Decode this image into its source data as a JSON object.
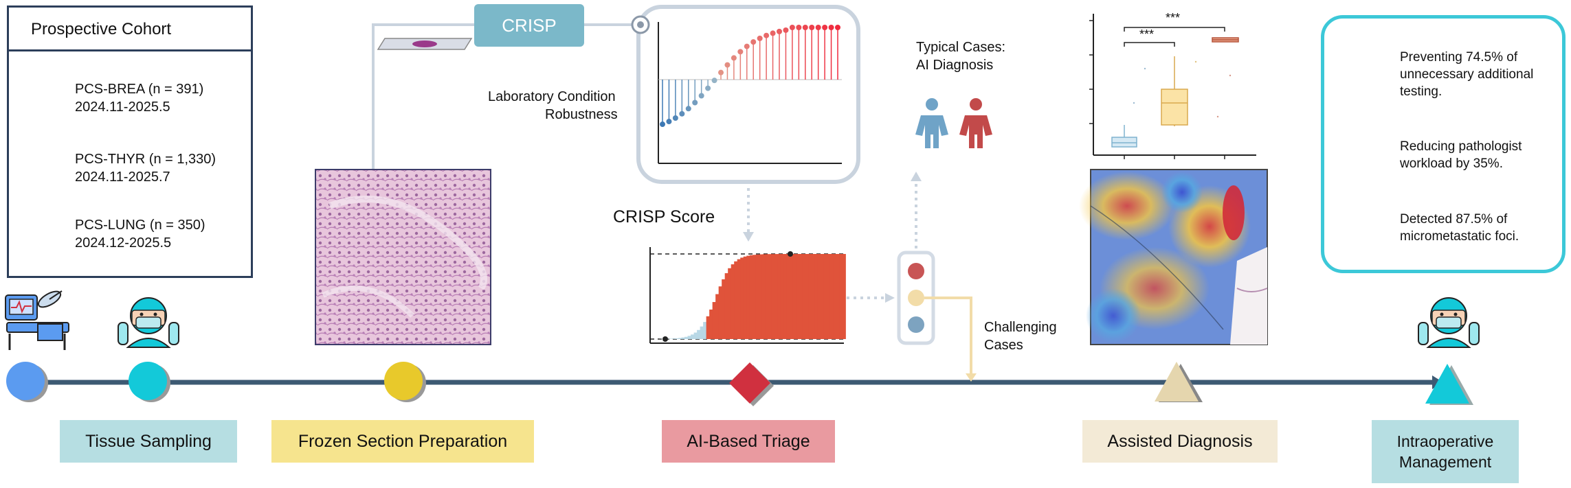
{
  "cohort": {
    "title": "Prospective Cohort",
    "items": [
      {
        "name": "PCS-BREA (n = 391)",
        "date": "2024.11-2025.5"
      },
      {
        "name": "PCS-THYR (n = 1,330)",
        "date": "2024.11-2025.7"
      },
      {
        "name": "PCS-LUNG (n = 350)",
        "date": "2024.12-2025.5"
      }
    ]
  },
  "crisp_label": "CRISP",
  "robustness_label_1": "Laboratory Condition",
  "robustness_label_2": "Robustness",
  "score_label": "CRISP Score",
  "typical_1": "Typical Cases:",
  "typical_2": "AI Diagnosis",
  "challenging_1": "Challenging",
  "challenging_2": "Cases",
  "significance_1": "***",
  "significance_2": "***",
  "stages": [
    {
      "label": "Tissue Sampling",
      "color": "#b6dee2"
    },
    {
      "label": "Frozen Section Preparation",
      "color": "#f6e48e"
    },
    {
      "label": "AI-Based Triage",
      "color": "#e99aa0"
    },
    {
      "label": "Assisted Diagnosis",
      "color": "#f3ead6"
    },
    {
      "label_1": "Intraoperative",
      "label_2": "Management",
      "color": "#b6dee2"
    }
  ],
  "benefits": [
    {
      "line_1": "Preventing 74.5% of",
      "line_2": "unnecessary additional",
      "line_3": "testing."
    },
    {
      "line_1": "Reducing pathologist",
      "line_2": "workload by 35%."
    },
    {
      "line_1": "Detected 87.5% of",
      "line_2": "micrometastatic foci."
    }
  ],
  "colors": {
    "timeline": "#3d5a73",
    "accent_red": "#e0533a",
    "accent_cyan": "#3cc8d8",
    "traffic_red": "#c85555",
    "traffic_yellow": "#f2dca8",
    "traffic_blue": "#7da3c0"
  }
}
